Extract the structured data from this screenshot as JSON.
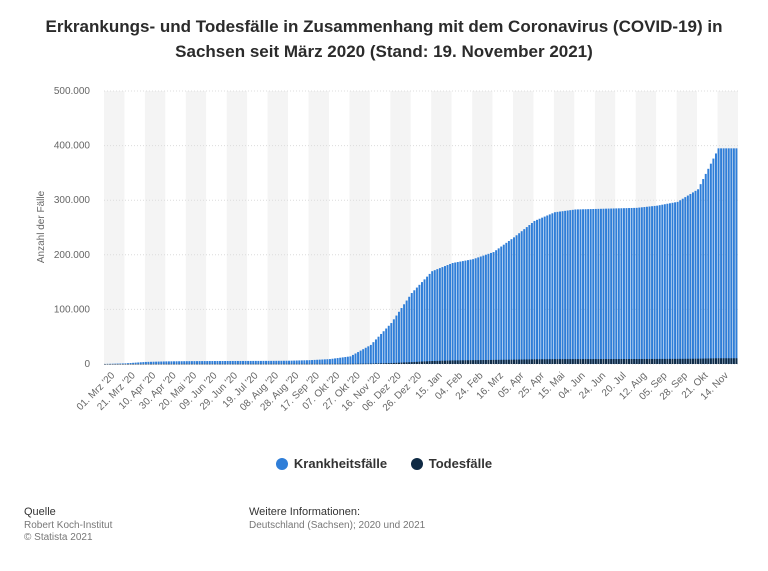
{
  "title": "Erkrankungs- und Todesfälle in Zusammenhang mit dem Coronavirus (COVID-19) in Sachsen seit März 2020 (Stand: 19. November 2021)",
  "chart_data": {
    "type": "bar",
    "ylabel": "Anzahl der Fälle",
    "ylim": [
      0,
      500000
    ],
    "yticks": [
      "0",
      "100.000",
      "200.000",
      "300.000",
      "400.000",
      "500.000"
    ],
    "ytick_values": [
      0,
      100000,
      200000,
      300000,
      400000,
      500000
    ],
    "categories": [
      "01. Mrz '20",
      "21. Mrz '20",
      "10. Apr '20",
      "30. Apr '20",
      "20. Mai '20",
      "09. Jun '20",
      "29. Jun '20",
      "19. Jul '20",
      "08. Aug '20",
      "28. Aug '20",
      "17. Sep '20",
      "07. Okt '20",
      "27. Okt '20",
      "16. Nov '20",
      "06. Dez '20",
      "26. Dez '20",
      "15. Jan",
      "04. Feb",
      "24. Feb",
      "16. Mrz",
      "05. Apr",
      "25. Apr",
      "15. Mai",
      "04. Jun",
      "24. Jun",
      "20. Jul",
      "12. Aug",
      "05. Sep",
      "28. Sep",
      "21. Okt",
      "14. Nov"
    ],
    "series": [
      {
        "name": "Krankheitsfälle",
        "color": "#2f7ed8",
        "values": [
          100,
          1200,
          3800,
          4800,
          5200,
          5400,
          5500,
          5600,
          5700,
          6000,
          7000,
          9000,
          14000,
          35000,
          75000,
          130000,
          170000,
          185000,
          192000,
          205000,
          232000,
          262000,
          278000,
          283000,
          284000,
          285000,
          286000,
          290000,
          297000,
          320000,
          395000
        ]
      },
      {
        "name": "Todesfälle",
        "color": "#0f2a44",
        "values": [
          0,
          10,
          100,
          150,
          180,
          190,
          200,
          210,
          220,
          230,
          240,
          260,
          350,
          700,
          1700,
          3500,
          5500,
          6500,
          7000,
          7500,
          8000,
          8600,
          8900,
          9000,
          9050,
          9100,
          9150,
          9250,
          9400,
          9700,
          10500
        ]
      }
    ],
    "legend_position": "bottom",
    "grid": "alternating vertical bands"
  },
  "legend": [
    "Krankheitsfälle",
    "Todesfälle"
  ],
  "footer": {
    "source_head": "Quelle",
    "source_line1": "Robert Koch-Institut",
    "source_line2": "© Statista 2021",
    "info_head": "Weitere Informationen:",
    "info_line1": "Deutschland (Sachsen); 2020 und 2021"
  }
}
